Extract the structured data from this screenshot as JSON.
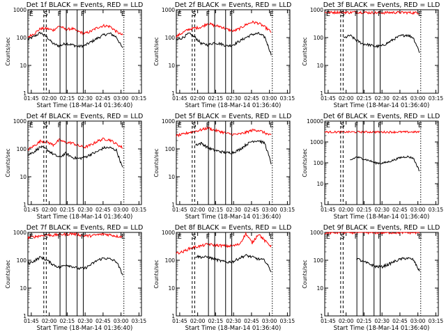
{
  "chart_data": [
    {
      "type": "line",
      "title": "Det 1f BLACK = Events, RED = LLD",
      "xlabel": "Start Time (18-Mar-14 01:36:40)",
      "ylabel": "Counts/sec",
      "y_scale": "log",
      "ylim": [
        1,
        1000
      ],
      "y_ticks": [
        "1",
        "10",
        "100",
        "1000"
      ],
      "x_ticks": [
        "01:45",
        "02:00",
        "02:15",
        "02:30",
        "02:45",
        "03:00",
        "03:15"
      ],
      "markers": [
        "E",
        "S",
        "F",
        "F",
        "E"
      ],
      "series": [
        {
          "color": "#000000",
          "values": [
            85,
            110,
            150,
            105,
            60,
            50,
            62,
            55,
            48,
            52,
            70,
            95,
            125,
            140,
            105,
            40
          ]
        },
        {
          "color": "#ff0000",
          "values": [
            105,
            140,
            210,
            210,
            185,
            260,
            195,
            210,
            165,
            140,
            170,
            230,
            270,
            250,
            165,
            120
          ]
        }
      ]
    },
    {
      "type": "line",
      "title": "Det 2f BLACK = Events, RED = LLD",
      "xlabel": "Start Time (18-Mar-14 01:36:40)",
      "ylabel": "Counts/sec",
      "y_scale": "log",
      "ylim": [
        1,
        1000
      ],
      "y_ticks": [
        "1",
        "10",
        "100",
        "1000"
      ],
      "x_ticks": [
        "01:45",
        "02:00",
        "02:15",
        "02:30",
        "02:45",
        "03:00",
        "03:15"
      ],
      "markers": [
        "E",
        "S",
        "F",
        "F",
        "E"
      ],
      "series": [
        {
          "color": "#000000",
          "values": [
            80,
            100,
            140,
            100,
            60,
            55,
            65,
            60,
            50,
            55,
            75,
            100,
            130,
            140,
            105,
            25
          ]
        },
        {
          "color": "#ff0000",
          "values": [
            110,
            150,
            200,
            220,
            240,
            330,
            270,
            250,
            200,
            170,
            210,
            290,
            360,
            330,
            240,
            160
          ]
        }
      ]
    },
    {
      "type": "line",
      "title": "Det 3f BLACK = Events, RED = LLD",
      "xlabel": "Start Time (18-Mar-14 01:36:40)",
      "ylabel": "Counts/sec",
      "y_scale": "log",
      "ylim": [
        1,
        1000
      ],
      "y_ticks": [
        "1",
        "10",
        "100",
        "1000"
      ],
      "x_ticks": [
        "01:45",
        "02:00",
        "02:15",
        "02:30",
        "02:45",
        "03:00",
        "03:15"
      ],
      "markers": [
        "E",
        "S",
        "F",
        "F",
        "E"
      ],
      "series": [
        {
          "color": "#000000",
          "values": [
            null,
            null,
            null,
            95,
            120,
            80,
            60,
            55,
            48,
            50,
            65,
            90,
            115,
            125,
            100,
            30
          ]
        },
        {
          "color": "#ff0000",
          "values": [
            790,
            800,
            820,
            810,
            800,
            830,
            810,
            790,
            780,
            780,
            790,
            800,
            800,
            790,
            780,
            780
          ]
        }
      ]
    },
    {
      "type": "line",
      "title": "Det 4f BLACK = Events, RED = LLD",
      "xlabel": "Start Time (18-Mar-14 01:36:40)",
      "ylabel": "Counts/sec",
      "y_scale": "log",
      "ylim": [
        1,
        1000
      ],
      "y_ticks": [
        "1",
        "10",
        "100",
        "1000"
      ],
      "x_ticks": [
        "01:45",
        "02:00",
        "02:15",
        "02:30",
        "02:45",
        "03:00",
        "03:15"
      ],
      "markers": [
        "E",
        "S",
        "F",
        "F",
        "E"
      ],
      "series": [
        {
          "color": "#000000",
          "values": [
            60,
            80,
            120,
            95,
            65,
            50,
            70,
            50,
            45,
            50,
            65,
            80,
            110,
            110,
            90,
            20
          ]
        },
        {
          "color": "#ff0000",
          "values": [
            95,
            130,
            190,
            180,
            140,
            210,
            170,
            165,
            130,
            115,
            140,
            190,
            230,
            210,
            150,
            110
          ]
        }
      ]
    },
    {
      "type": "line",
      "title": "Det 5f BLACK = Events, RED = LLD",
      "xlabel": "Start Time (18-Mar-14 01:36:40)",
      "ylabel": "Counts/sec",
      "y_scale": "log",
      "ylim": [
        1,
        1000
      ],
      "y_ticks": [
        "1",
        "10",
        "100",
        "1000"
      ],
      "x_ticks": [
        "01:45",
        "02:00",
        "02:15",
        "02:30",
        "02:45",
        "03:00",
        "03:15"
      ],
      "markers": [
        "E",
        "S",
        "F",
        "F",
        "E"
      ],
      "series": [
        {
          "color": "#000000",
          "values": [
            null,
            null,
            null,
            140,
            160,
            110,
            90,
            80,
            72,
            75,
            95,
            140,
            190,
            200,
            160,
            30
          ]
        },
        {
          "color": "#ff0000",
          "values": [
            300,
            330,
            390,
            430,
            490,
            570,
            470,
            420,
            360,
            330,
            340,
            390,
            470,
            470,
            380,
            300
          ]
        }
      ]
    },
    {
      "type": "line",
      "title": "Det 6f BLACK = Events, RED = LLD",
      "xlabel": "Start Time (18-Mar-14 01:36:40)",
      "ylabel": "Counts/sec",
      "y_scale": "log",
      "ylim": [
        1,
        10000
      ],
      "y_ticks": [
        "1",
        "10",
        "100",
        "1000",
        "10000"
      ],
      "x_ticks": [
        "01:45",
        "02:00",
        "02:15",
        "02:30",
        "02:45",
        "03:00",
        "03:15"
      ],
      "markers": [
        "E",
        "S",
        "F",
        "F",
        "E"
      ],
      "series": [
        {
          "color": "#000000",
          "values": [
            null,
            null,
            null,
            null,
            130,
            190,
            160,
            130,
            100,
            95,
            110,
            140,
            180,
            200,
            170,
            40
          ]
        },
        {
          "color": "#ff0000",
          "values": [
            3000,
            3000,
            3000,
            3000,
            3000,
            3000,
            3000,
            3000,
            3000,
            3000,
            3000,
            3000,
            3000,
            3000,
            3000,
            3000
          ]
        }
      ]
    },
    {
      "type": "line",
      "title": "Det 7f BLACK = Events, RED = LLD",
      "xlabel": "Start Time (18-Mar-14 01:36:40)",
      "ylabel": "Counts/sec",
      "y_scale": "log",
      "ylim": [
        1,
        1000
      ],
      "y_ticks": [
        "1",
        "10",
        "100",
        "1000"
      ],
      "x_ticks": [
        "01:45",
        "02:00",
        "02:15",
        "02:30",
        "02:45",
        "03:00",
        "03:15"
      ],
      "markers": [
        "E",
        "S",
        "F",
        "F",
        "E"
      ],
      "series": [
        {
          "color": "#000000",
          "values": [
            75,
            95,
            130,
            100,
            70,
            55,
            70,
            60,
            50,
            52,
            70,
            100,
            120,
            110,
            90,
            30
          ]
        },
        {
          "color": "#ff0000",
          "values": [
            650,
            700,
            760,
            820,
            790,
            840,
            860,
            900,
            830,
            760,
            760,
            820,
            870,
            820,
            740,
            700
          ]
        }
      ]
    },
    {
      "type": "line",
      "title": "Det 8f BLACK = Events, RED = LLD",
      "xlabel": "Start Time (18-Mar-14 01:36:40)",
      "ylabel": "Counts/sec",
      "y_scale": "log",
      "ylim": [
        1,
        1000
      ],
      "y_ticks": [
        "1",
        "10",
        "100",
        "1000"
      ],
      "x_ticks": [
        "01:45",
        "02:00",
        "02:15",
        "02:30",
        "02:45",
        "03:00",
        "03:15"
      ],
      "markers": [
        "E",
        "S",
        "F",
        "F",
        "E"
      ],
      "series": [
        {
          "color": "#000000",
          "values": [
            null,
            null,
            null,
            140,
            130,
            130,
            110,
            95,
            85,
            90,
            120,
            150,
            130,
            110,
            100,
            40
          ]
        },
        {
          "color": "#ff0000",
          "values": [
            180,
            200,
            260,
            300,
            330,
            380,
            350,
            340,
            320,
            330,
            380,
            900,
            420,
            900,
            500,
            320
          ]
        }
      ]
    },
    {
      "type": "line",
      "title": "Det 9f BLACK = Events, RED = LLD",
      "xlabel": "Start Time (18-Mar-14 01:36:40)",
      "ylabel": "Counts/sec",
      "y_scale": "log",
      "ylim": [
        1,
        1000
      ],
      "y_ticks": [
        "1",
        "10",
        "100",
        "1000"
      ],
      "x_ticks": [
        "01:45",
        "02:00",
        "02:15",
        "02:30",
        "02:45",
        "03:00",
        "03:15"
      ],
      "markers": [
        "E",
        "S",
        "F",
        "F",
        "E"
      ],
      "series": [
        {
          "color": "#000000",
          "values": [
            null,
            null,
            null,
            null,
            null,
            120,
            90,
            75,
            60,
            58,
            70,
            90,
            110,
            120,
            105,
            40
          ]
        },
        {
          "color": "#ff0000",
          "values": [
            950,
            970,
            980,
            990,
            1000,
            1000,
            990,
            990,
            980,
            980,
            985,
            990,
            1000,
            990,
            985,
            980
          ]
        }
      ]
    }
  ]
}
